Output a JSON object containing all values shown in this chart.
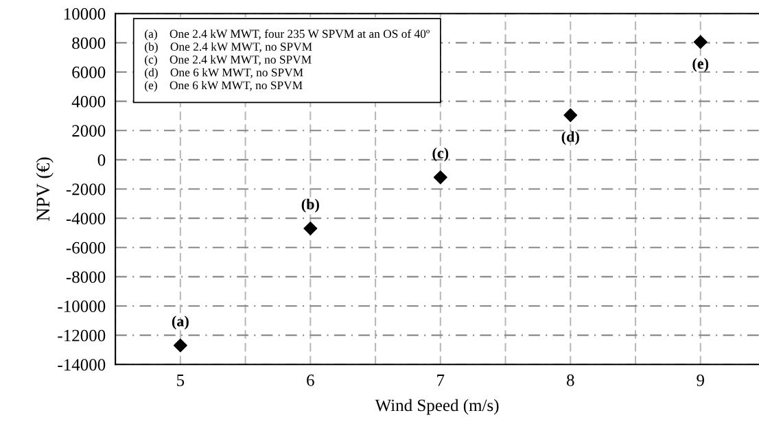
{
  "chart_data": {
    "type": "scatter",
    "xlabel": "Wind Speed (m/s)",
    "ylabel": "NPV (€)",
    "x": [
      5,
      6,
      7,
      8,
      9
    ],
    "series": [
      {
        "color": "#000000",
        "values": [
          -12700,
          -4700,
          -1200,
          3050,
          8050
        ]
      }
    ],
    "marker": "diamond",
    "xlim": [
      4.5,
      9.45
    ],
    "xticks": [
      {
        "value": 4.5,
        "label": null
      },
      5,
      {
        "value": 5.5,
        "label": null
      },
      6,
      {
        "value": 6.5,
        "label": null
      },
      7,
      {
        "value": 7.5,
        "label": null
      },
      8,
      {
        "value": 8.5,
        "label": null
      },
      9
    ],
    "ylim": [
      -14000,
      10000
    ],
    "yticks": [
      -14000,
      -12000,
      -10000,
      -8000,
      -6000,
      -4000,
      -2000,
      0,
      2000,
      4000,
      6000,
      8000,
      10000
    ],
    "grid": true,
    "annotations": [
      "(a)    One 2.4 kW MWT, four 235 W SPVM at an OS of 40º",
      "(b)    One 2.4 kW MWT, no SPVM",
      "(c)    One 2.4 kW MWT, no SPVM",
      "(d)    One 6 kW MWT, no SPVM",
      "(e)    One 6 kW MWT, no SPVM",
      {
        "text": "(a)",
        "x": 5,
        "y": -12700
      },
      {
        "text": "(b)",
        "x": 6,
        "y": -4700
      },
      {
        "text": "(c)",
        "x": 7,
        "y": -1200
      },
      {
        "text": "(d)",
        "x": 8,
        "y": 3050
      },
      {
        "text": "(e)",
        "x": 9,
        "y": 8050
      }
    ]
  }
}
